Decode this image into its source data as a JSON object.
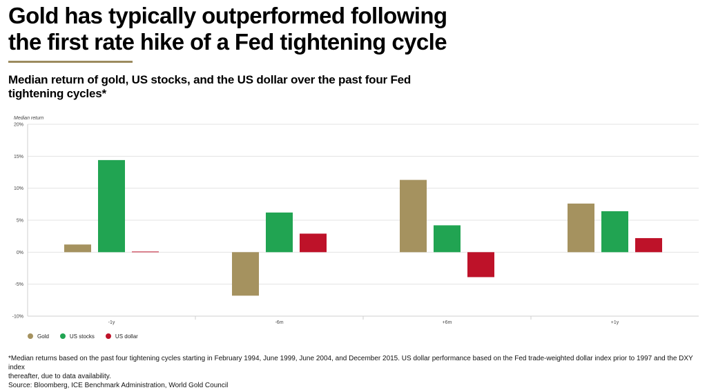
{
  "header": {
    "title_line1": "Gold has typically outperformed following",
    "title_line2": "the first rate hike of a Fed tightening cycle",
    "subtitle_line1": "Median return of gold, US stocks, and the US dollar over the past four Fed",
    "subtitle_line2": "tightening cycles*",
    "accent_color": "#9C8B5E"
  },
  "chart_data": {
    "type": "bar",
    "ylabel": "Median return",
    "xlabel": "",
    "ylim": [
      -10,
      20
    ],
    "yticks": [
      -10,
      -5,
      0,
      5,
      10,
      15,
      20
    ],
    "ytick_labels": [
      "-10%",
      "-5%",
      "0%",
      "5%",
      "10%",
      "15%",
      "20%"
    ],
    "categories": [
      "-1y",
      "-6m",
      "+6m",
      "+1y"
    ],
    "grid": true,
    "legend": "bottom-left",
    "series": [
      {
        "name": "Gold",
        "color": "#A5925F",
        "values": [
          1.2,
          -6.8,
          11.3,
          7.6
        ]
      },
      {
        "name": "US stocks",
        "color": "#21A452",
        "values": [
          14.4,
          6.2,
          4.2,
          6.4
        ]
      },
      {
        "name": "US dollar",
        "color": "#BE1229",
        "values": [
          0.1,
          2.9,
          -3.9,
          2.2
        ]
      }
    ]
  },
  "footnote": {
    "line1": "*Median returns based on the past four tightening cycles starting in February 1994, June 1999, June 2004, and December 2015. US dollar performance based on the Fed trade-weighted dollar index prior to 1997 and the DXY index",
    "line2": "thereafter, due to data availability.",
    "source": "Source: Bloomberg, ICE Benchmark Administration, World Gold Council"
  }
}
